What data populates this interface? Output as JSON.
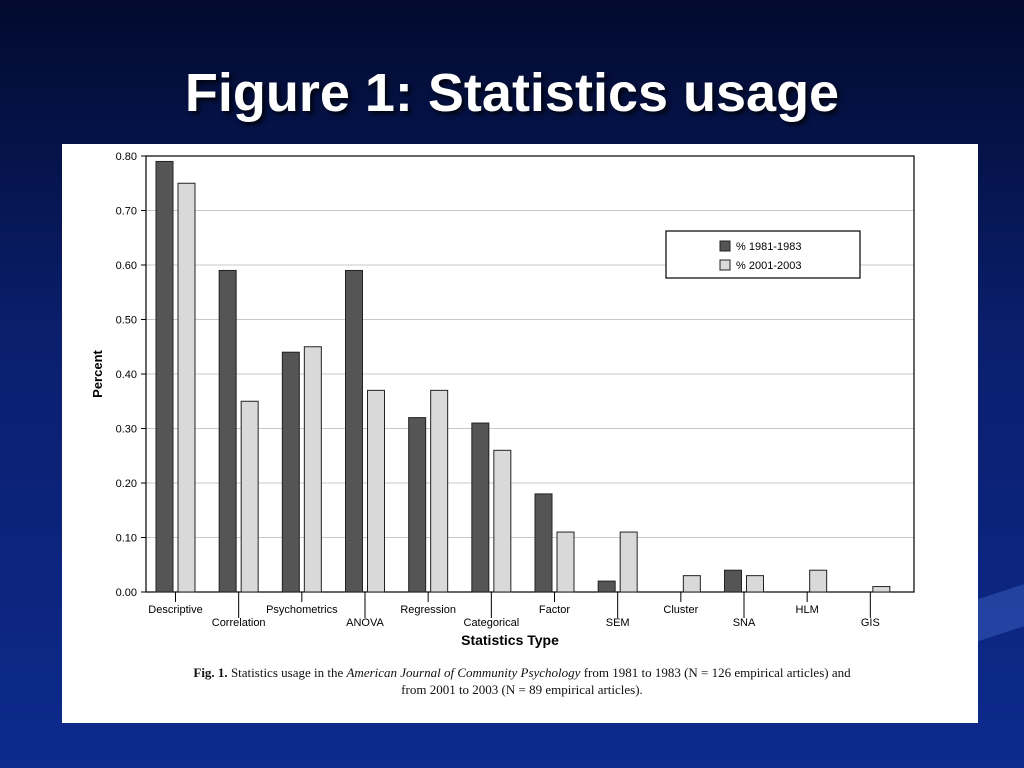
{
  "slide": {
    "title": "Figure 1: Statistics usage"
  },
  "caption": {
    "label": "Fig. 1.",
    "text_before_journal": "Statistics usage in the",
    "journal": "American Journal of Community Psychology",
    "text_after_journal": "from 1981 to 1983 (N = 126 empirical articles) and",
    "line2": "from 2001 to 2003 (N = 89 empirical articles)."
  },
  "colors": {
    "series_1981": "#555555",
    "series_2001": "#d9d9d9",
    "background_top": "#020a2e",
    "background_bottom": "#0d2a8c"
  },
  "chart_data": {
    "type": "bar",
    "xlabel": "Statistics Type",
    "ylabel": "Percent",
    "ylim": [
      0,
      0.8
    ],
    "yticks": [
      "0.00",
      "0.10",
      "0.20",
      "0.30",
      "0.40",
      "0.50",
      "0.60",
      "0.70",
      "0.80"
    ],
    "grid": true,
    "legend_position": "top-right",
    "categories": [
      "Descriptive",
      "Correlation",
      "Psychometrics",
      "ANOVA",
      "Regression",
      "Categorical",
      "Factor",
      "SEM",
      "Cluster",
      "SNA",
      "HLM",
      "GIS"
    ],
    "series": [
      {
        "name": "% 1981-1983",
        "values": [
          0.79,
          0.59,
          0.44,
          0.59,
          0.32,
          0.31,
          0.18,
          0.02,
          0.0,
          0.04,
          0.0,
          0.0
        ]
      },
      {
        "name": "% 2001-2003",
        "values": [
          0.75,
          0.35,
          0.45,
          0.37,
          0.37,
          0.26,
          0.11,
          0.11,
          0.03,
          0.03,
          0.04,
          0.01
        ]
      }
    ]
  }
}
